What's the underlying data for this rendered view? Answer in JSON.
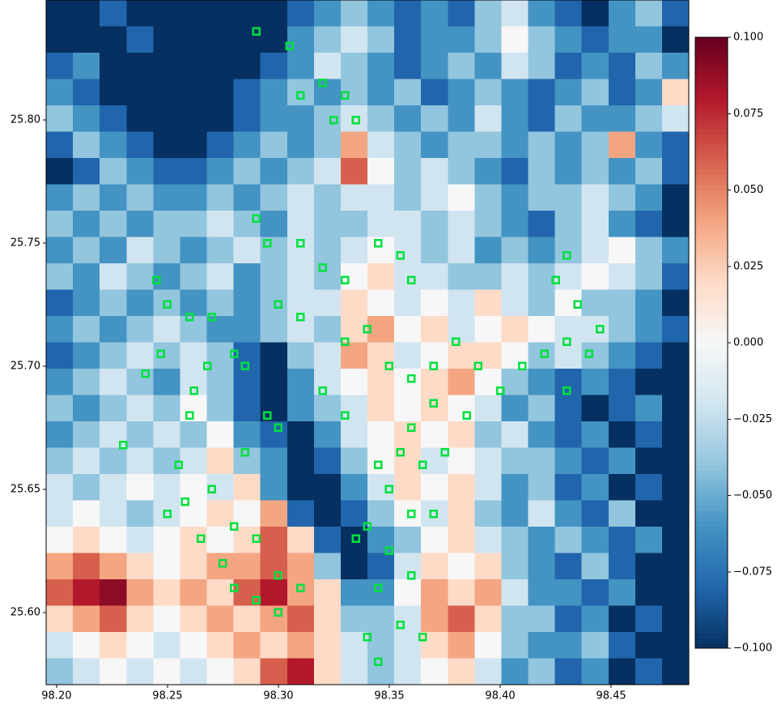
{
  "chart_data": {
    "type": "heatmap",
    "xlim": [
      98.1953,
      98.485
    ],
    "ylim": [
      25.5707,
      25.8487
    ],
    "xticks": [
      {
        "value": 98.2,
        "label": "98.20"
      },
      {
        "value": 98.25,
        "label": "98.25"
      },
      {
        "value": 98.3,
        "label": "98.30"
      },
      {
        "value": 98.35,
        "label": "98.35"
      },
      {
        "value": 98.4,
        "label": "98.40"
      },
      {
        "value": 98.45,
        "label": "98.45"
      }
    ],
    "yticks": [
      {
        "value": 25.6,
        "label": "25.60"
      },
      {
        "value": 25.65,
        "label": "25.65"
      },
      {
        "value": 25.7,
        "label": "25.70"
      },
      {
        "value": 25.75,
        "label": "25.75"
      },
      {
        "value": 25.8,
        "label": "25.80"
      }
    ],
    "colormap": "RdBu_r",
    "clim": [
      -0.1,
      0.1
    ],
    "cticks": [
      {
        "value": 0.1,
        "label": "0.100"
      },
      {
        "value": 0.075,
        "label": "0.075"
      },
      {
        "value": 0.05,
        "label": "0.050"
      },
      {
        "value": 0.025,
        "label": "0.025"
      },
      {
        "value": 0,
        "label": "0.000"
      },
      {
        "value": -0.025,
        "label": "−0.025"
      },
      {
        "value": -0.05,
        "label": "−0.050"
      },
      {
        "value": -0.075,
        "label": "−0.075"
      },
      {
        "value": -0.1,
        "label": "−0.100"
      }
    ],
    "z": [
      [
        -0.1,
        -0.1,
        -0.08,
        -0.1,
        -0.1,
        -0.1,
        -0.1,
        -0.1,
        -0.1,
        -0.08,
        -0.06,
        -0.04,
        -0.06,
        -0.08,
        -0.06,
        -0.08,
        -0.04,
        -0.02,
        -0.06,
        -0.08,
        -0.1,
        -0.06,
        -0.04,
        -0.08
      ],
      [
        -0.1,
        -0.1,
        -0.1,
        -0.08,
        -0.1,
        -0.1,
        -0.1,
        -0.1,
        -0.1,
        -0.06,
        -0.04,
        -0.02,
        -0.04,
        -0.08,
        -0.06,
        -0.06,
        -0.04,
        0,
        -0.04,
        -0.06,
        -0.08,
        -0.06,
        -0.06,
        -0.1
      ],
      [
        -0.08,
        -0.06,
        -0.1,
        -0.1,
        -0.1,
        -0.1,
        -0.1,
        -0.1,
        -0.08,
        -0.06,
        -0.02,
        -0.04,
        -0.06,
        -0.08,
        -0.06,
        -0.04,
        -0.06,
        -0.02,
        -0.04,
        -0.08,
        -0.06,
        -0.08,
        -0.04,
        -0.06
      ],
      [
        -0.06,
        -0.08,
        -0.1,
        -0.1,
        -0.1,
        -0.1,
        -0.1,
        -0.08,
        -0.06,
        -0.04,
        -0.06,
        -0.04,
        -0.06,
        -0.04,
        -0.08,
        -0.06,
        -0.04,
        -0.06,
        -0.08,
        -0.06,
        -0.04,
        -0.08,
        -0.06,
        0.02
      ],
      [
        -0.04,
        -0.06,
        -0.08,
        -0.1,
        -0.1,
        -0.1,
        -0.1,
        -0.08,
        -0.06,
        -0.06,
        -0.04,
        -0.02,
        -0.04,
        -0.06,
        -0.04,
        -0.06,
        -0.02,
        -0.06,
        -0.08,
        -0.04,
        -0.06,
        -0.06,
        -0.04,
        -0.02
      ],
      [
        -0.08,
        -0.04,
        -0.06,
        -0.08,
        -0.1,
        -0.1,
        -0.08,
        -0.06,
        -0.04,
        -0.06,
        -0.04,
        0.04,
        -0.02,
        -0.04,
        -0.06,
        -0.04,
        -0.04,
        -0.06,
        -0.04,
        -0.06,
        -0.04,
        0.04,
        -0.06,
        -0.08
      ],
      [
        -0.1,
        -0.08,
        -0.04,
        -0.06,
        -0.08,
        -0.08,
        -0.06,
        -0.04,
        -0.06,
        -0.04,
        -0.02,
        0.06,
        0,
        -0.04,
        -0.02,
        -0.04,
        -0.06,
        -0.08,
        -0.04,
        -0.06,
        -0.04,
        -0.06,
        -0.04,
        -0.08
      ],
      [
        -0.06,
        -0.04,
        -0.06,
        -0.04,
        -0.06,
        -0.06,
        -0.04,
        -0.06,
        -0.04,
        -0.02,
        -0.04,
        -0.02,
        -0.02,
        -0.04,
        -0.02,
        0,
        -0.04,
        -0.06,
        -0.04,
        -0.04,
        -0.02,
        -0.04,
        -0.06,
        -0.1
      ],
      [
        -0.04,
        -0.06,
        -0.04,
        -0.06,
        -0.04,
        -0.04,
        -0.02,
        -0.04,
        -0.06,
        -0.02,
        -0.04,
        -0.04,
        -0.02,
        -0.02,
        -0.04,
        -0.02,
        -0.04,
        -0.06,
        -0.08,
        -0.04,
        -0.02,
        -0.06,
        -0.08,
        -0.1
      ],
      [
        -0.06,
        -0.04,
        -0.06,
        -0.02,
        -0.04,
        -0.06,
        -0.04,
        -0.02,
        -0.04,
        -0.02,
        -0.04,
        -0.02,
        0,
        -0.02,
        -0.04,
        -0.02,
        -0.06,
        -0.04,
        -0.06,
        -0.04,
        -0.02,
        0,
        -0.04,
        -0.06
      ],
      [
        -0.04,
        -0.06,
        -0.02,
        -0.04,
        -0.06,
        -0.04,
        -0.02,
        -0.06,
        -0.04,
        -0.02,
        -0.04,
        0,
        0.02,
        -0.02,
        -0.02,
        -0.04,
        -0.04,
        -0.02,
        -0.04,
        -0.02,
        0,
        -0.02,
        -0.04,
        -0.08
      ],
      [
        -0.08,
        -0.06,
        -0.04,
        -0.06,
        -0.04,
        -0.06,
        -0.04,
        -0.06,
        -0.04,
        -0.02,
        -0.02,
        0.02,
        0,
        -0.02,
        0,
        -0.02,
        0.02,
        -0.02,
        -0.04,
        0,
        -0.04,
        -0.04,
        -0.06,
        -0.1
      ],
      [
        -0.06,
        -0.04,
        -0.06,
        -0.04,
        -0.02,
        -0.04,
        -0.06,
        -0.06,
        -0.04,
        -0.02,
        -0.04,
        0.02,
        0.04,
        0,
        0.02,
        -0.02,
        0,
        0.02,
        0,
        -0.02,
        -0.02,
        -0.04,
        -0.06,
        -0.08
      ],
      [
        -0.08,
        -0.06,
        -0.04,
        -0.02,
        -0.04,
        -0.02,
        -0.04,
        -0.08,
        -0.1,
        -0.04,
        -0.02,
        0.04,
        0.02,
        -0.02,
        0,
        0.02,
        0.02,
        0,
        -0.04,
        -0.02,
        -0.04,
        -0.06,
        -0.08,
        -0.1
      ],
      [
        -0.06,
        -0.04,
        -0.02,
        -0.04,
        -0.06,
        -0.02,
        -0.04,
        -0.08,
        -0.1,
        -0.06,
        -0.02,
        0,
        0.02,
        0,
        0.02,
        0.04,
        0,
        -0.04,
        -0.06,
        -0.08,
        -0.06,
        -0.08,
        -0.1,
        -0.1
      ],
      [
        -0.04,
        -0.06,
        -0.04,
        -0.02,
        -0.04,
        0,
        -0.04,
        -0.08,
        -0.1,
        -0.06,
        -0.04,
        -0.02,
        0.02,
        0,
        0.02,
        0,
        -0.02,
        -0.06,
        -0.04,
        -0.08,
        -0.1,
        -0.08,
        -0.06,
        -0.1
      ],
      [
        -0.06,
        -0.04,
        -0.02,
        -0.04,
        -0.02,
        -0.04,
        0,
        -0.06,
        -0.08,
        -0.1,
        -0.06,
        -0.02,
        0,
        0.02,
        0,
        0.02,
        -0.04,
        -0.02,
        -0.06,
        -0.08,
        -0.06,
        -0.1,
        -0.08,
        -0.1
      ],
      [
        -0.04,
        -0.02,
        -0.04,
        -0.02,
        -0.04,
        -0.02,
        0.02,
        -0.04,
        -0.06,
        -0.1,
        -0.08,
        -0.04,
        0,
        0.02,
        -0.02,
        0,
        -0.02,
        -0.04,
        -0.04,
        -0.06,
        -0.08,
        -0.06,
        -0.1,
        -0.1
      ],
      [
        -0.02,
        -0.04,
        -0.02,
        0,
        -0.02,
        0,
        -0.02,
        0.02,
        -0.06,
        -0.1,
        -0.1,
        -0.06,
        -0.02,
        0.02,
        0,
        0.02,
        -0.02,
        -0.06,
        -0.04,
        -0.08,
        -0.06,
        -0.1,
        -0.08,
        -0.1
      ],
      [
        -0.02,
        0,
        -0.02,
        -0.04,
        -0.02,
        0,
        0.02,
        0,
        0.04,
        -0.08,
        -0.1,
        -0.08,
        -0.04,
        0,
        -0.02,
        0.02,
        -0.04,
        -0.06,
        -0.02,
        -0.06,
        -0.08,
        -0.04,
        -0.1,
        -0.1
      ],
      [
        0,
        0.02,
        0,
        -0.02,
        0,
        0.02,
        0,
        0.02,
        0.06,
        0.02,
        -0.08,
        -0.1,
        -0.06,
        -0.04,
        0,
        0.02,
        -0.02,
        -0.04,
        -0.06,
        -0.04,
        -0.06,
        -0.08,
        -0.06,
        -0.1
      ],
      [
        0.04,
        0.06,
        0.04,
        0.02,
        0,
        0.02,
        0.04,
        0.04,
        0.06,
        0.04,
        -0.04,
        -0.1,
        -0.08,
        -0.02,
        0.02,
        0,
        0.02,
        -0.04,
        -0.06,
        -0.08,
        -0.04,
        -0.08,
        -0.1,
        -0.1
      ],
      [
        0.06,
        0.08,
        0.09,
        0.04,
        0.02,
        0.04,
        0.02,
        0.06,
        0.08,
        0.04,
        0.02,
        -0.06,
        -0.06,
        0,
        0.04,
        0.02,
        0.04,
        -0.02,
        -0.06,
        -0.06,
        -0.08,
        -0.06,
        -0.1,
        -0.1
      ],
      [
        0.02,
        0.04,
        0.06,
        0.02,
        0,
        0.02,
        0.04,
        0.02,
        0.04,
        0.06,
        0.02,
        -0.04,
        -0.04,
        -0.02,
        0.04,
        0.06,
        0.02,
        -0.04,
        -0.04,
        -0.08,
        -0.06,
        -0.1,
        -0.08,
        -0.1
      ],
      [
        -0.02,
        0,
        0.02,
        0,
        -0.02,
        0,
        0.02,
        0.04,
        0.02,
        0.04,
        0.02,
        -0.02,
        -0.04,
        -0.02,
        0.02,
        0.04,
        0,
        -0.04,
        -0.06,
        -0.06,
        -0.04,
        -0.08,
        -0.1,
        -0.1
      ],
      [
        -0.04,
        -0.02,
        0,
        -0.02,
        0,
        -0.02,
        0,
        0.02,
        0.06,
        0.08,
        0.02,
        -0.02,
        -0.04,
        -0.02,
        0,
        0.02,
        -0.02,
        -0.06,
        -0.04,
        -0.08,
        -0.06,
        -0.1,
        -0.08,
        -0.1
      ]
    ],
    "points": {
      "type": "scatter",
      "color": "#00e040",
      "x": [
        98.29,
        98.305,
        98.32,
        98.33,
        98.335,
        98.325,
        98.31,
        98.29,
        98.295,
        98.31,
        98.32,
        98.33,
        98.345,
        98.355,
        98.36,
        98.245,
        98.25,
        98.247,
        98.24,
        98.26,
        98.27,
        98.268,
        98.262,
        98.28,
        98.285,
        98.3,
        98.31,
        98.33,
        98.34,
        98.35,
        98.36,
        98.37,
        98.38,
        98.39,
        98.4,
        98.37,
        98.385,
        98.36,
        98.355,
        98.345,
        98.35,
        98.365,
        98.375,
        98.36,
        98.37,
        98.34,
        98.335,
        98.35,
        98.345,
        98.36,
        98.355,
        98.365,
        98.34,
        98.345,
        98.255,
        98.258,
        98.25,
        98.265,
        98.275,
        98.28,
        98.29,
        98.3,
        98.31,
        98.3,
        98.28,
        98.29,
        98.27,
        98.285,
        98.295,
        98.3,
        98.23,
        98.26,
        98.33,
        98.32,
        98.43,
        98.425,
        98.435,
        98.43,
        98.44,
        98.445,
        98.42,
        98.41,
        98.43
      ],
      "y": [
        25.836,
        25.83,
        25.815,
        25.81,
        25.8,
        25.8,
        25.81,
        25.76,
        25.75,
        25.75,
        25.74,
        25.735,
        25.75,
        25.745,
        25.735,
        25.735,
        25.725,
        25.705,
        25.697,
        25.72,
        25.72,
        25.7,
        25.69,
        25.705,
        25.7,
        25.725,
        25.72,
        25.71,
        25.715,
        25.7,
        25.695,
        25.7,
        25.71,
        25.7,
        25.69,
        25.685,
        25.68,
        25.675,
        25.665,
        25.66,
        25.65,
        25.66,
        25.665,
        25.64,
        25.64,
        25.635,
        25.63,
        25.625,
        25.61,
        25.615,
        25.595,
        25.59,
        25.59,
        25.58,
        25.66,
        25.645,
        25.64,
        25.63,
        25.62,
        25.61,
        25.605,
        25.615,
        25.61,
        25.6,
        25.635,
        25.63,
        25.65,
        25.665,
        25.68,
        25.675,
        25.668,
        25.68,
        25.68,
        25.69,
        25.745,
        25.735,
        25.725,
        25.71,
        25.705,
        25.715,
        25.705,
        25.7,
        25.69
      ]
    }
  }
}
